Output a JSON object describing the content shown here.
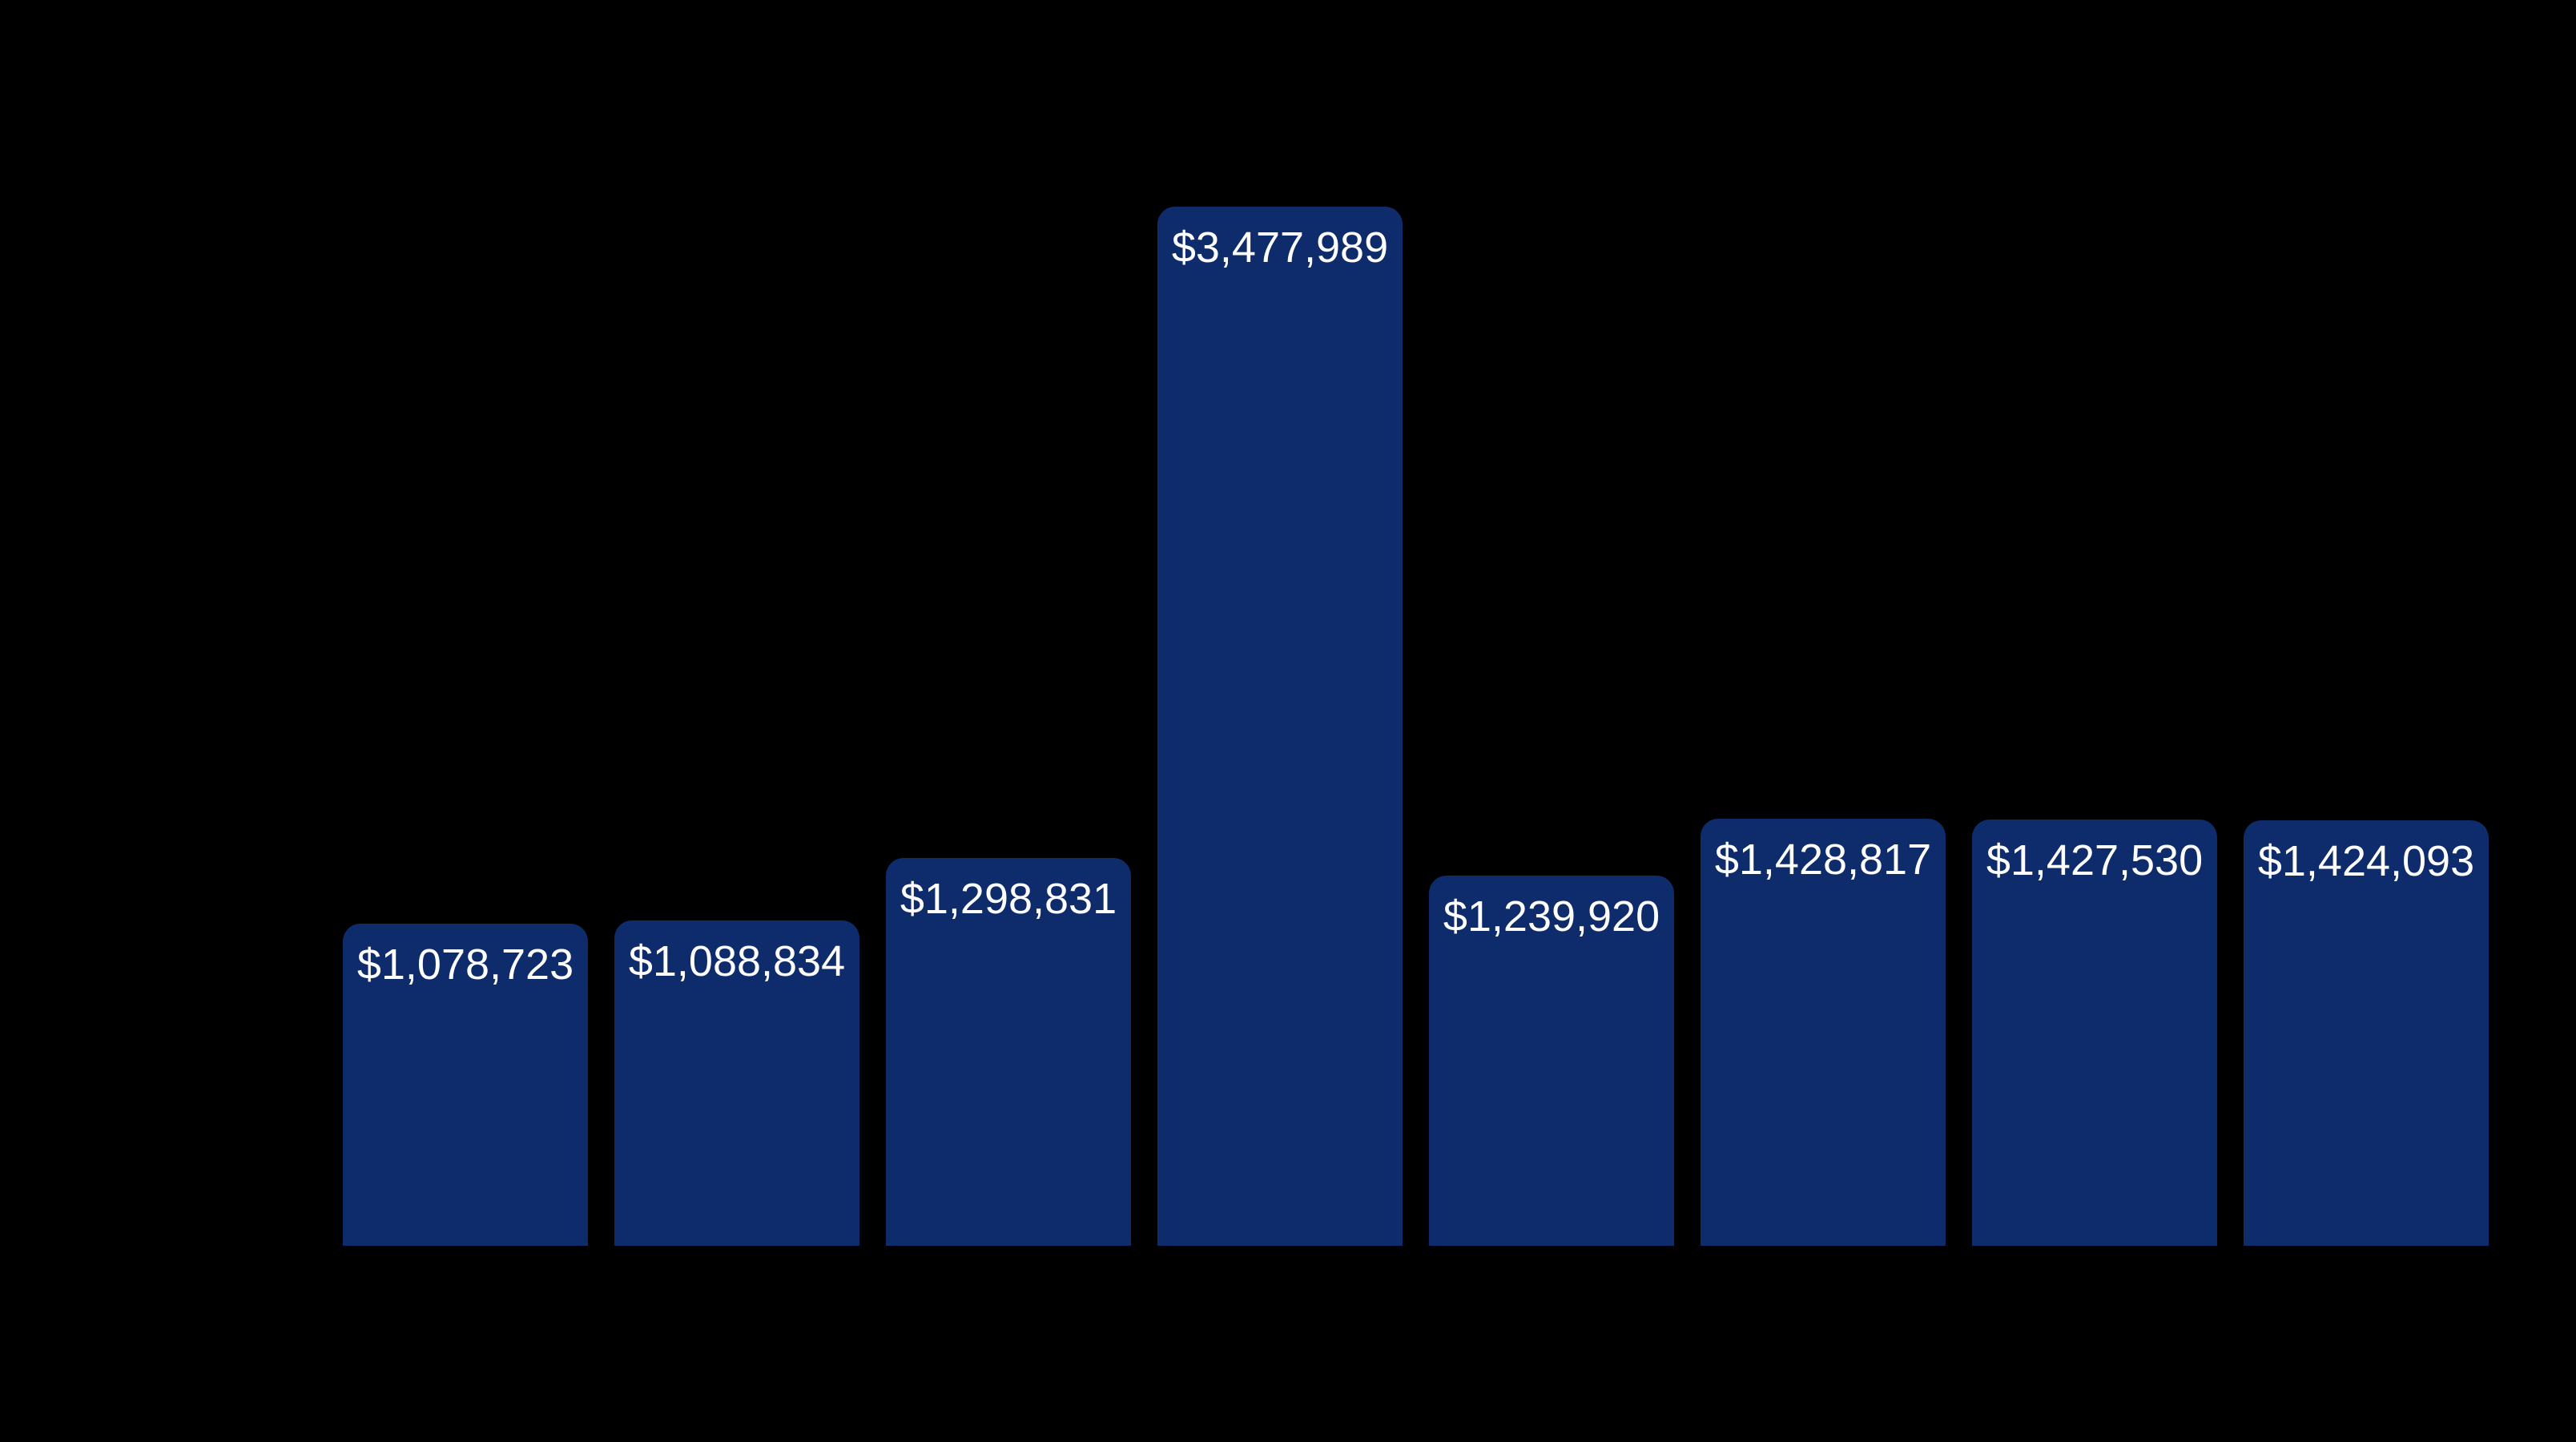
{
  "chart_data": {
    "type": "bar",
    "title": "",
    "xlabel": "",
    "ylabel": "",
    "categories": [
      "",
      "",
      "",
      "",
      "",
      "",
      "",
      ""
    ],
    "values": [
      1078723,
      1088834,
      1298831,
      3477989,
      1239920,
      1428817,
      1427530,
      1424093
    ],
    "data_labels": [
      "$1,078,723",
      "$1,088,834",
      "$1,298,831",
      "$3,477,989",
      "$1,239,920",
      "$1,428,817",
      "$1,427,530",
      "$1,424,093"
    ],
    "ylim": [
      0,
      3477989
    ],
    "grid": false,
    "legend": null,
    "bar_color": "#0e2b6b",
    "background_color": "#000000",
    "label_color": "#ffffff"
  },
  "bars": [
    {
      "label": "$1,078,723"
    },
    {
      "label": "$1,088,834"
    },
    {
      "label": "$1,298,831"
    },
    {
      "label": "$3,477,989"
    },
    {
      "label": "$1,239,920"
    },
    {
      "label": "$1,428,817"
    },
    {
      "label": "$1,427,530"
    },
    {
      "label": "$1,424,093"
    }
  ]
}
